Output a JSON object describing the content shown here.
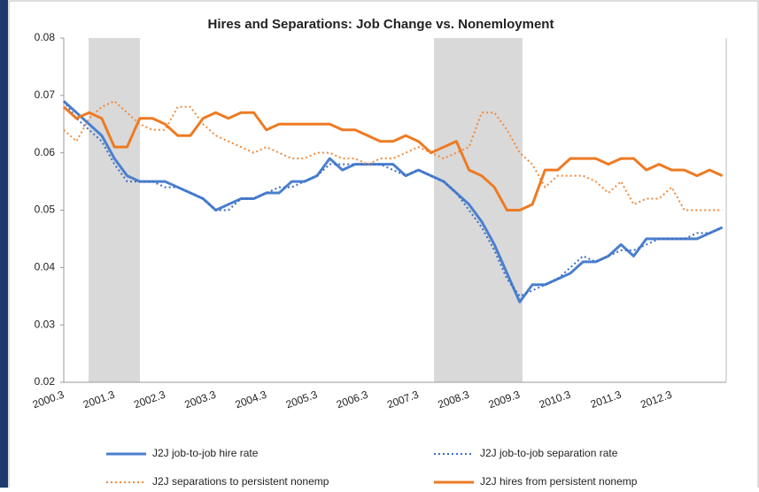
{
  "chart_data": {
    "type": "line",
    "title": "Hires and Separations: Job Change vs. Nonemloyment",
    "categories": [
      "2000.3",
      null,
      null,
      null,
      "2001.3",
      null,
      null,
      null,
      "2002.3",
      null,
      null,
      null,
      "2003.3",
      null,
      null,
      null,
      "2004.3",
      null,
      null,
      null,
      "2005.3",
      null,
      null,
      null,
      "2006.3",
      null,
      null,
      null,
      "2007.3",
      null,
      null,
      null,
      "2008.3",
      null,
      null,
      null,
      "2009.3",
      null,
      null,
      null,
      "2010.3",
      null,
      null,
      null,
      "2011.3",
      null,
      null,
      null,
      "2012.3",
      null,
      null,
      null,
      null
    ],
    "ylim": [
      0.02,
      0.08
    ],
    "yticks": [
      0.02,
      0.03,
      0.04,
      0.05,
      0.06,
      0.07,
      0.08
    ],
    "series": [
      {
        "name": "J2J job-to-job hire rate",
        "color": "#4a7fcf",
        "dash": false,
        "values": [
          0.069,
          0.067,
          0.065,
          0.063,
          0.059,
          0.056,
          0.055,
          0.055,
          0.055,
          0.054,
          0.053,
          0.052,
          0.05,
          0.051,
          0.052,
          0.052,
          0.053,
          0.053,
          0.055,
          0.055,
          0.056,
          0.059,
          0.057,
          0.058,
          0.058,
          0.058,
          0.058,
          0.056,
          0.057,
          0.056,
          0.055,
          0.053,
          0.051,
          0.048,
          0.044,
          0.039,
          0.034,
          0.037,
          0.037,
          0.038,
          0.039,
          0.041,
          0.041,
          0.042,
          0.044,
          0.042,
          0.045,
          0.045,
          0.045,
          0.045,
          0.045,
          0.046,
          0.047
        ]
      },
      {
        "name": "J2J job-to-job separation rate",
        "color": "#3d6fc0",
        "dash": true,
        "values": [
          0.069,
          0.066,
          0.064,
          0.062,
          0.058,
          0.055,
          0.055,
          0.055,
          0.054,
          0.054,
          0.053,
          0.052,
          0.05,
          0.05,
          0.052,
          0.052,
          0.053,
          0.054,
          0.054,
          0.055,
          0.056,
          0.058,
          0.058,
          0.058,
          0.058,
          0.058,
          0.057,
          0.056,
          0.057,
          0.056,
          0.055,
          0.053,
          0.05,
          0.047,
          0.043,
          0.038,
          0.035,
          0.036,
          0.037,
          0.038,
          0.04,
          0.042,
          0.041,
          0.042,
          0.043,
          0.043,
          0.044,
          0.045,
          0.045,
          0.045,
          0.046,
          0.046,
          0.047
        ]
      },
      {
        "name": "J2J separations to persistent nonemp",
        "color": "#f08a3a",
        "dash": true,
        "values": [
          0.064,
          0.062,
          0.066,
          0.068,
          0.069,
          0.067,
          0.065,
          0.064,
          0.064,
          0.068,
          0.068,
          0.065,
          0.063,
          0.062,
          0.061,
          0.06,
          0.061,
          0.06,
          0.059,
          0.059,
          0.06,
          0.06,
          0.059,
          0.059,
          0.058,
          0.059,
          0.059,
          0.06,
          0.061,
          0.06,
          0.059,
          0.06,
          0.061,
          0.067,
          0.067,
          0.064,
          0.06,
          0.058,
          0.054,
          0.056,
          0.056,
          0.056,
          0.055,
          0.053,
          0.055,
          0.051,
          0.052,
          0.052,
          0.054,
          0.05,
          0.05,
          0.05,
          0.05
        ]
      },
      {
        "name": "J2J hires from persistent nonemp",
        "color": "#ee7a22",
        "dash": false,
        "values": [
          0.068,
          0.066,
          0.067,
          0.066,
          0.061,
          0.061,
          0.066,
          0.066,
          0.065,
          0.063,
          0.063,
          0.066,
          0.067,
          0.066,
          0.067,
          0.067,
          0.064,
          0.065,
          0.065,
          0.065,
          0.065,
          0.065,
          0.064,
          0.064,
          0.063,
          0.062,
          0.062,
          0.063,
          0.062,
          0.06,
          0.061,
          0.062,
          0.057,
          0.056,
          0.054,
          0.05,
          0.05,
          0.051,
          0.057,
          0.057,
          0.059,
          0.059,
          0.059,
          0.058,
          0.059,
          0.059,
          0.057,
          0.058,
          0.057,
          0.057,
          0.056,
          0.057,
          0.056
        ]
      }
    ]
  }
}
